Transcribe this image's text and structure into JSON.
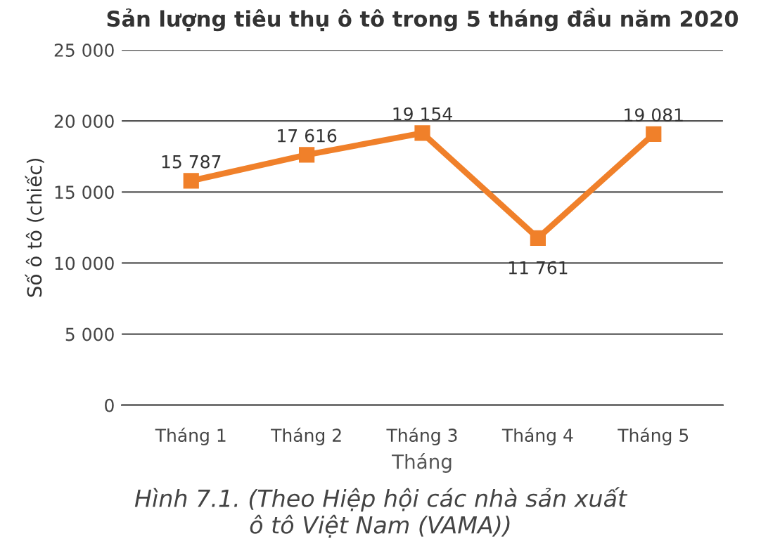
{
  "chart_data": {
    "type": "line",
    "title": "Sản lượng tiêu thụ ô tô trong 5 tháng đầu năm 2020",
    "xlabel": "Tháng",
    "ylabel": "Số ô tô (chiếc)",
    "categories": [
      "Tháng 1",
      "Tháng 2",
      "Tháng 3",
      "Tháng 4",
      "Tháng 5"
    ],
    "series": [
      {
        "color": "#f0802a",
        "values": [
          15787,
          17616,
          19154,
          11761,
          19081
        ],
        "value_labels": [
          "15 787",
          "17 616",
          "19 154",
          "11 761",
          "19 081"
        ]
      }
    ],
    "ylim": [
      0,
      25000
    ],
    "yticks": [
      0,
      {
        "value": 5000,
        "label": "5 000"
      },
      {
        "value": 10000,
        "label": "10 000"
      },
      {
        "value": 15000,
        "label": "15 000"
      },
      {
        "value": 20000,
        "label": "20 000"
      },
      {
        "value": 25000,
        "label": "25 000"
      }
    ],
    "grid": "y",
    "marker": "square",
    "line_style": "solid",
    "annotations": [
      "Hình 7.1. (Theo Hiệp hội các nhà sản xuất\nô tô Việt Nam (VAMA))"
    ]
  }
}
